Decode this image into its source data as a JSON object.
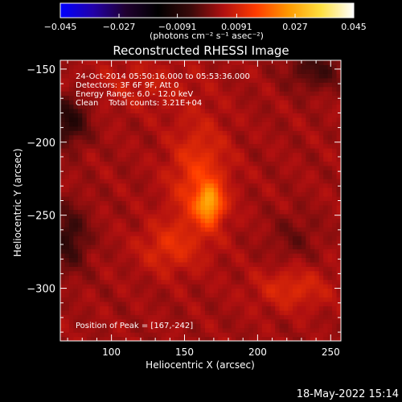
{
  "chart_data": {
    "type": "heatmap",
    "title": "Reconstructed RHESSI Image",
    "xlabel": "Heliocentric X (arcsec)",
    "ylabel": "Heliocentric Y (arcsec)",
    "xlim": [
      65,
      257
    ],
    "ylim": [
      -336,
      -144
    ],
    "x_ticks": [
      100,
      150,
      200,
      250
    ],
    "y_ticks": [
      -150,
      -200,
      -250,
      -300
    ],
    "colorbar": {
      "min": -0.045,
      "max": 0.045,
      "tick_values": [
        -0.045,
        -0.027,
        -0.0091,
        0.0091,
        0.027,
        0.045
      ],
      "tick_labels": [
        "−0.045",
        "−0.027",
        "−0.0091",
        "0.0091",
        "0.027",
        "0.045"
      ],
      "units_label": "(photons cm⁻² s⁻¹ asec⁻²)",
      "colormap": [
        "#0000ff",
        "#2200aa",
        "#200030",
        "#000000",
        "#3a0a0a",
        "#b01010",
        "#ff3b00",
        "#ff9900",
        "#ffe040",
        "#ffffff"
      ]
    },
    "annotations": [
      "24-Oct-2014 05:50:16.000 to 05:53:36.000",
      "Detectors: 3F 6F 9F, Att 0",
      "Energy Range: 6.0 - 12.0 keV",
      "Clean    Total counts: 3.21E+04"
    ],
    "peak_label": "Position of Peak = [167,-242]",
    "peak": {
      "x": 167,
      "y": -242
    },
    "sources": [
      {
        "x": 167,
        "y": -242,
        "amp": 0.018,
        "sx": 6,
        "sy": 9
      },
      {
        "x": 160,
        "y": -226,
        "amp": 0.01,
        "sx": 14,
        "sy": 28
      },
      {
        "x": 138,
        "y": -272,
        "amp": 0.007,
        "sx": 14,
        "sy": 12
      },
      {
        "x": 224,
        "y": -300,
        "amp": 0.007,
        "sx": 18,
        "sy": 10
      },
      {
        "x": 120,
        "y": -160,
        "amp": 0.004,
        "sx": 25,
        "sy": 12
      },
      {
        "x": 70,
        "y": -185,
        "amp": -0.012,
        "sx": 10,
        "sy": 12
      },
      {
        "x": 70,
        "y": -265,
        "amp": -0.01,
        "sx": 10,
        "sy": 16
      },
      {
        "x": 240,
        "y": -150,
        "amp": -0.008,
        "sx": 14,
        "sy": 10
      },
      {
        "x": 225,
        "y": -265,
        "amp": -0.004,
        "sx": 12,
        "sy": 12
      }
    ]
  },
  "footer": {
    "timestamp": "18-May-2022 15:14"
  }
}
